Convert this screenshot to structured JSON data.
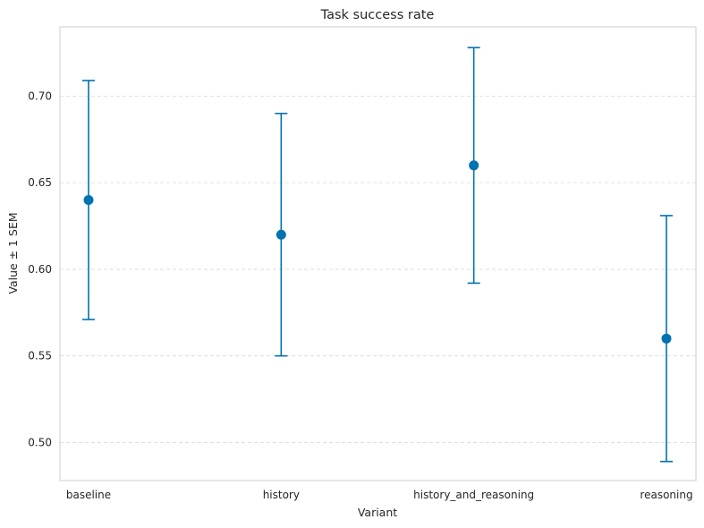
{
  "chart_data": {
    "type": "scatter",
    "title": "Task success rate",
    "xlabel": "Variant",
    "ylabel": "Value ± 1 SEM",
    "categories": [
      "baseline",
      "history",
      "history_and_reasoning",
      "reasoning"
    ],
    "series": [
      {
        "values": [
          0.64,
          0.62,
          0.66,
          0.56
        ],
        "sem": [
          0.069,
          0.07,
          0.068,
          0.071
        ]
      }
    ],
    "ylim": [
      0.478,
      0.74
    ],
    "yticks": [
      0.5,
      0.55,
      0.6,
      0.65,
      0.7
    ],
    "ytick_labels": [
      "0.50",
      "0.55",
      "0.60",
      "0.65",
      "0.70"
    ],
    "grid": "y-dashed",
    "color": "#0072b2"
  }
}
